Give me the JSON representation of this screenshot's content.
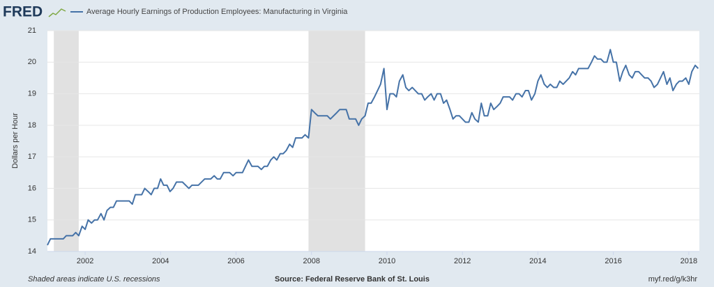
{
  "chart_data": {
    "type": "line",
    "logo": "FRED",
    "ylabel": "Dollars per Hour",
    "note": "Shaded areas indicate U.S. recessions",
    "source": "Source: Federal Reserve Bank of St. Louis",
    "link": "myf.red/g/k3hr",
    "xlim": [
      2001.0,
      2018.28
    ],
    "xticks": [
      2002,
      2004,
      2006,
      2008,
      2010,
      2012,
      2014,
      2016,
      2018
    ],
    "ylim": [
      14,
      21
    ],
    "yticks": [
      14,
      15,
      16,
      17,
      18,
      19,
      20,
      21
    ],
    "grid": true,
    "recessions": [
      [
        2001.17,
        2001.83
      ],
      [
        2007.92,
        2009.42
      ]
    ],
    "recession_color": "#e1e1e1",
    "x": [
      2001.0,
      2001.08,
      2001.25,
      2001.42,
      2001.5,
      2001.67,
      2001.75,
      2001.83,
      2001.92,
      2002.0,
      2002.08,
      2002.17,
      2002.25,
      2002.33,
      2002.42,
      2002.5,
      2002.58,
      2002.67,
      2002.75,
      2002.83,
      2003.0,
      2003.17,
      2003.25,
      2003.33,
      2003.5,
      2003.58,
      2003.67,
      2003.75,
      2003.83,
      2003.92,
      2004.0,
      2004.08,
      2004.17,
      2004.25,
      2004.33,
      2004.42,
      2004.58,
      2004.75,
      2004.83,
      2005.0,
      2005.17,
      2005.33,
      2005.42,
      2005.5,
      2005.58,
      2005.67,
      2005.83,
      2005.92,
      2006.0,
      2006.17,
      2006.25,
      2006.33,
      2006.42,
      2006.58,
      2006.67,
      2006.75,
      2006.83,
      2006.92,
      2007.0,
      2007.08,
      2007.17,
      2007.25,
      2007.33,
      2007.42,
      2007.5,
      2007.58,
      2007.75,
      2007.83,
      2007.92,
      2008.0,
      2008.08,
      2008.17,
      2008.42,
      2008.5,
      2008.67,
      2008.75,
      2008.92,
      2009.0,
      2009.17,
      2009.25,
      2009.33,
      2009.42,
      2009.5,
      2009.58,
      2009.67,
      2009.83,
      2009.92,
      2010.0,
      2010.08,
      2010.17,
      2010.25,
      2010.33,
      2010.42,
      2010.5,
      2010.58,
      2010.67,
      2010.75,
      2010.83,
      2010.92,
      2011.0,
      2011.08,
      2011.17,
      2011.25,
      2011.33,
      2011.42,
      2011.5,
      2011.58,
      2011.67,
      2011.75,
      2011.83,
      2011.92,
      2012.0,
      2012.08,
      2012.17,
      2012.25,
      2012.33,
      2012.42,
      2012.5,
      2012.58,
      2012.67,
      2012.75,
      2012.83,
      2012.92,
      2013.0,
      2013.08,
      2013.25,
      2013.33,
      2013.42,
      2013.5,
      2013.58,
      2013.67,
      2013.75,
      2013.83,
      2013.92,
      2014.0,
      2014.08,
      2014.17,
      2014.25,
      2014.33,
      2014.42,
      2014.5,
      2014.58,
      2014.67,
      2014.75,
      2014.83,
      2014.92,
      2015.0,
      2015.08,
      2015.33,
      2015.42,
      2015.5,
      2015.58,
      2015.67,
      2015.75,
      2015.83,
      2015.92,
      2016.0,
      2016.08,
      2016.17,
      2016.25,
      2016.33,
      2016.42,
      2016.5,
      2016.58,
      2016.67,
      2016.75,
      2016.83,
      2016.92,
      2017.0,
      2017.08,
      2017.17,
      2017.25,
      2017.33,
      2017.42,
      2017.5,
      2017.58,
      2017.67,
      2017.75,
      2017.83,
      2017.92,
      2018.0,
      2018.08,
      2018.17,
      2018.25
    ],
    "series": [
      {
        "name": "Average Hourly Earnings of Production Employees: Manufacturing in Virginia",
        "color": "#4572a7",
        "values": [
          14.2,
          14.4,
          14.4,
          14.4,
          14.5,
          14.5,
          14.6,
          14.5,
          14.8,
          14.7,
          15.0,
          14.9,
          15.0,
          15.0,
          15.2,
          15.0,
          15.3,
          15.4,
          15.4,
          15.6,
          15.6,
          15.6,
          15.5,
          15.8,
          15.8,
          16.0,
          15.9,
          15.8,
          16.0,
          16.0,
          16.3,
          16.1,
          16.1,
          15.9,
          16.0,
          16.2,
          16.2,
          16.0,
          16.1,
          16.1,
          16.3,
          16.3,
          16.4,
          16.3,
          16.3,
          16.5,
          16.5,
          16.4,
          16.5,
          16.5,
          16.7,
          16.9,
          16.7,
          16.7,
          16.6,
          16.7,
          16.7,
          16.9,
          17.0,
          16.9,
          17.1,
          17.1,
          17.2,
          17.4,
          17.3,
          17.6,
          17.6,
          17.7,
          17.6,
          18.5,
          18.4,
          18.3,
          18.3,
          18.2,
          18.4,
          18.5,
          18.5,
          18.2,
          18.2,
          18.0,
          18.2,
          18.3,
          18.7,
          18.7,
          18.9,
          19.3,
          19.8,
          18.5,
          19.0,
          19.0,
          18.9,
          19.4,
          19.6,
          19.2,
          19.1,
          19.2,
          19.1,
          19.0,
          19.0,
          18.8,
          18.9,
          19.0,
          18.8,
          19.0,
          19.0,
          18.7,
          18.8,
          18.5,
          18.2,
          18.3,
          18.3,
          18.2,
          18.1,
          18.1,
          18.4,
          18.2,
          18.1,
          18.7,
          18.3,
          18.3,
          18.7,
          18.5,
          18.6,
          18.7,
          18.9,
          18.9,
          18.8,
          19.0,
          19.0,
          18.9,
          19.1,
          19.1,
          18.8,
          19.0,
          19.4,
          19.6,
          19.3,
          19.2,
          19.3,
          19.2,
          19.2,
          19.4,
          19.3,
          19.4,
          19.5,
          19.7,
          19.6,
          19.8,
          19.8,
          20.0,
          20.2,
          20.1,
          20.1,
          20.0,
          20.0,
          20.4,
          20.0,
          20.0,
          19.4,
          19.7,
          19.9,
          19.6,
          19.5,
          19.7,
          19.7,
          19.6,
          19.5,
          19.5,
          19.4,
          19.2,
          19.3,
          19.5,
          19.7,
          19.3,
          19.5,
          19.1,
          19.3,
          19.4,
          19.4,
          19.5,
          19.3,
          19.7,
          19.9,
          19.8
        ]
      }
    ]
  }
}
